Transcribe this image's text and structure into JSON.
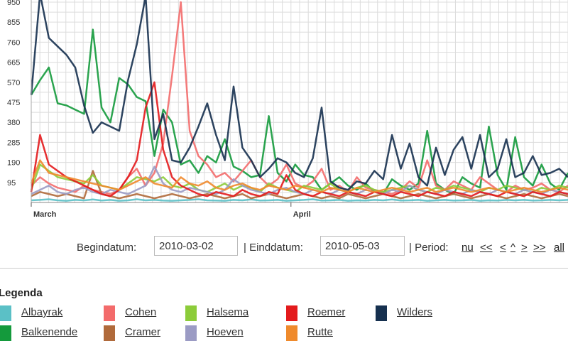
{
  "chart_data": {
    "type": "line",
    "y_ticks": [
      95,
      190,
      285,
      380,
      475,
      570,
      665,
      760,
      855,
      950
    ],
    "ylim": [
      0,
      960
    ],
    "x_labels": [
      {
        "label": "March",
        "date": "2010-03-02"
      },
      {
        "label": "April",
        "date": "2010-04-01"
      }
    ],
    "xlim": [
      "2010-03-02",
      "2010-05-03"
    ],
    "grid": true,
    "series": [
      {
        "name": "Albayrak",
        "color": "#5bc0c6",
        "values": [
          10,
          12,
          15,
          10,
          8,
          12,
          10,
          14,
          9,
          12,
          8,
          10,
          15,
          10,
          12,
          9,
          8,
          10,
          12,
          15,
          10,
          9,
          8,
          12,
          10,
          14,
          9,
          10,
          12,
          8,
          10,
          12,
          15,
          9,
          10,
          12,
          8,
          10,
          9,
          12,
          10,
          14,
          9,
          10,
          12,
          8,
          10,
          12,
          9,
          10,
          12,
          8,
          10,
          9,
          12,
          10,
          12,
          9,
          10,
          12,
          10,
          12
        ]
      },
      {
        "name": "Balkenende",
        "color": "#149a3c",
        "values": [
          510,
          580,
          640,
          470,
          460,
          440,
          420,
          820,
          450,
          380,
          590,
          560,
          500,
          480,
          220,
          440,
          380,
          180,
          200,
          140,
          220,
          190,
          300,
          170,
          150,
          120,
          130,
          410,
          140,
          100,
          180,
          130,
          120,
          60,
          90,
          120,
          80,
          60,
          90,
          50,
          40,
          110,
          80,
          60,
          90,
          340,
          90,
          60,
          40,
          120,
          90,
          70,
          360,
          130,
          60,
          310,
          120,
          80,
          180,
          90,
          60,
          140
        ]
      },
      {
        "name": "Cohen",
        "color": "#f36b6b",
        "values": [
          80,
          120,
          90,
          70,
          60,
          50,
          80,
          60,
          50,
          40,
          60,
          120,
          160,
          80,
          140,
          280,
          600,
          950,
          340,
          220,
          180,
          120,
          140,
          100,
          150,
          200,
          120,
          80,
          110,
          180,
          90,
          70,
          100,
          160,
          60,
          80,
          50,
          120,
          70,
          60,
          50,
          40,
          60,
          100,
          70,
          200,
          80,
          60,
          100,
          80,
          60,
          120,
          90,
          60,
          50,
          80,
          60,
          70,
          90,
          60,
          50,
          80
        ]
      },
      {
        "name": "Cramer",
        "color": "#b06a3b",
        "values": [
          30,
          50,
          40,
          30,
          40,
          30,
          20,
          150,
          40,
          30,
          20,
          30,
          40,
          30,
          20,
          30,
          40,
          30,
          20,
          30,
          40,
          30,
          20,
          30,
          40,
          20,
          30,
          40,
          30,
          20,
          30,
          40,
          30,
          20,
          30,
          20,
          40,
          30,
          20,
          30,
          40,
          30,
          20,
          30,
          40,
          30,
          20,
          30,
          40,
          30,
          20,
          30,
          40,
          30,
          20,
          30,
          40,
          30,
          20,
          30,
          40,
          30
        ]
      },
      {
        "name": "Halsema",
        "color": "#8ccc3a",
        "values": [
          60,
          180,
          150,
          120,
          110,
          100,
          90,
          130,
          80,
          70,
          60,
          90,
          120,
          110,
          100,
          120,
          80,
          70,
          90,
          60,
          50,
          70,
          90,
          60,
          80,
          70,
          50,
          90,
          70,
          60,
          50,
          80,
          70,
          60,
          90,
          60,
          50,
          70,
          80,
          60,
          50,
          60,
          70,
          80,
          60,
          50,
          70,
          60,
          80,
          70,
          60,
          50,
          70,
          60,
          80,
          70,
          60,
          50,
          70,
          60,
          80,
          70
        ]
      },
      {
        "name": "Hoeven",
        "color": "#9b9bc4",
        "values": [
          40,
          60,
          80,
          50,
          40,
          60,
          70,
          50,
          40,
          60,
          50,
          40,
          60,
          80,
          170,
          90,
          60,
          50,
          70,
          60,
          50,
          40,
          60,
          110,
          80,
          60,
          50,
          40,
          60,
          70,
          50,
          40,
          60,
          50,
          40,
          60,
          50,
          40,
          60,
          50,
          40,
          60,
          50,
          80,
          60,
          50,
          40,
          60,
          50,
          40,
          60,
          50,
          40,
          60,
          50,
          40,
          60,
          50,
          40,
          60,
          50,
          40
        ]
      },
      {
        "name": "Roemer",
        "color": "#e31a1c",
        "values": [
          50,
          320,
          180,
          150,
          120,
          100,
          80,
          60,
          40,
          30,
          60,
          120,
          200,
          450,
          570,
          250,
          120,
          80,
          60,
          40,
          30,
          50,
          40,
          30,
          60,
          40,
          30,
          50,
          40,
          130,
          60,
          40,
          30,
          50,
          40,
          30,
          50,
          40,
          30,
          50,
          40,
          30,
          50,
          40,
          30,
          50,
          40,
          30,
          50,
          40,
          30,
          50,
          40,
          30,
          50,
          40,
          30,
          50,
          40,
          30,
          50,
          40
        ]
      },
      {
        "name": "Rutte",
        "color": "#ef8a2c",
        "values": [
          90,
          200,
          140,
          130,
          120,
          110,
          100,
          90,
          80,
          70,
          60,
          80,
          100,
          120,
          90,
          80,
          70,
          120,
          90,
          80,
          100,
          70,
          60,
          80,
          90,
          70,
          60,
          80,
          70,
          60,
          80,
          70,
          60,
          50,
          70,
          60,
          50,
          70,
          60,
          50,
          60,
          70,
          60,
          50,
          60,
          70,
          50,
          60,
          70,
          60,
          50,
          60,
          70,
          60,
          50,
          60,
          70,
          60,
          50,
          60,
          70,
          60
        ]
      },
      {
        "name": "Wilders",
        "color": "#16304f",
        "values": [
          510,
          990,
          780,
          740,
          700,
          640,
          460,
          330,
          380,
          360,
          340,
          580,
          750,
          980,
          300,
          420,
          200,
          190,
          260,
          360,
          470,
          320,
          200,
          550,
          260,
          200,
          120,
          160,
          210,
          190,
          140,
          120,
          210,
          450,
          100,
          70,
          60,
          100,
          90,
          150,
          110,
          320,
          160,
          280,
          120,
          80,
          260,
          130,
          250,
          310,
          160,
          320,
          120,
          160,
          300,
          120,
          140,
          220,
          130,
          140,
          160,
          120
        ]
      }
    ]
  },
  "controls": {
    "begin_label": "Begindatum:",
    "begin_value": "2010-03-02",
    "end_label": "| Einddatum:",
    "end_value": "2010-05-03",
    "period_label": "| Period:",
    "nav": [
      "nu",
      "<<",
      "<",
      "^",
      ">",
      ">>",
      "all"
    ]
  },
  "legend": {
    "title": "Legenda",
    "items": [
      {
        "name": "Albayrak",
        "color": "#5bc0c6"
      },
      {
        "name": "Cohen",
        "color": "#f36b6b"
      },
      {
        "name": "Halsema",
        "color": "#8ccc3a"
      },
      {
        "name": "Roemer",
        "color": "#e31a1c"
      },
      {
        "name": "Wilders",
        "color": "#16304f"
      },
      {
        "name": "Balkenende",
        "color": "#149a3c"
      },
      {
        "name": "Cramer",
        "color": "#b06a3b"
      },
      {
        "name": "Hoeven",
        "color": "#9b9bc4"
      },
      {
        "name": "Rutte",
        "color": "#ef8a2c"
      }
    ]
  }
}
